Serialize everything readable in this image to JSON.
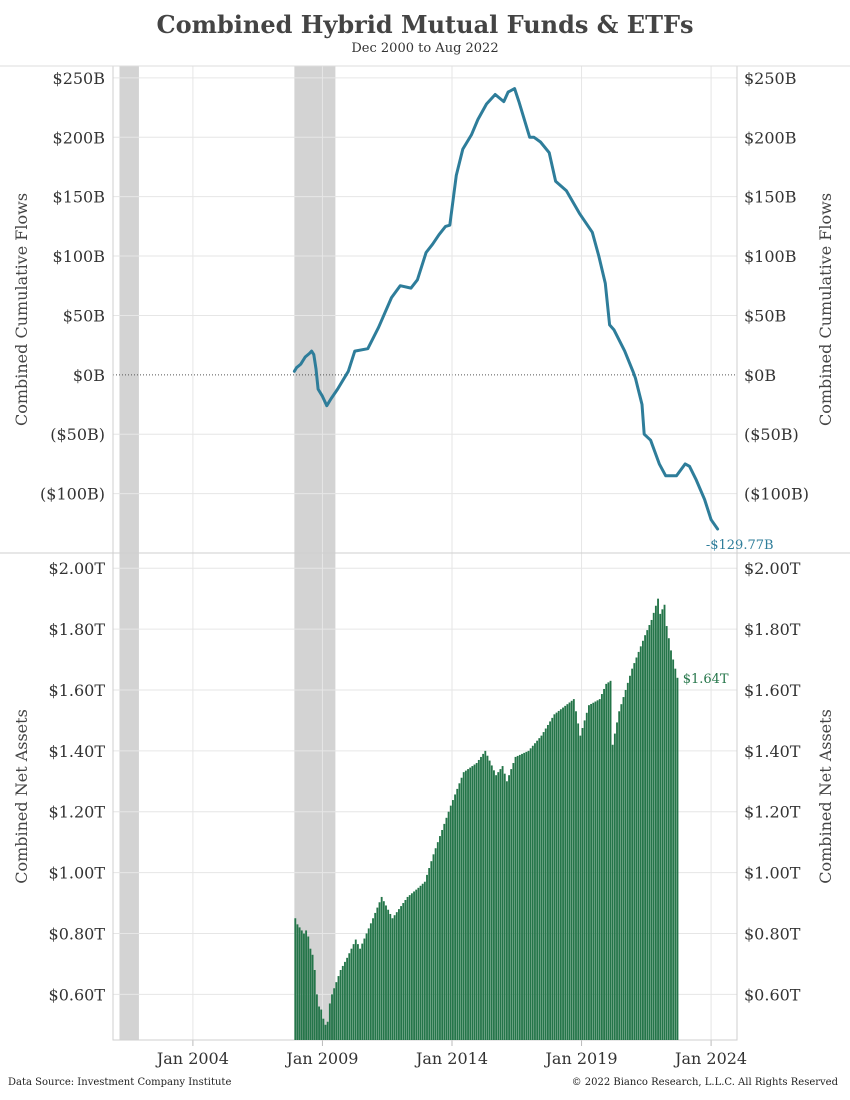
{
  "header": {
    "title": "Combined Hybrid Mutual Funds & ETFs",
    "subtitle": "Dec 2000 to Aug 2022"
  },
  "footer": {
    "source": "Data Source: Investment Company Institute",
    "copyright": "© 2022 Bianco Research, L.L.C. All Rights Reserved"
  },
  "colors": {
    "flows_line": "#2e7d9a",
    "assets_bar": "#247549",
    "recession_shade": "#d3d3d3",
    "grid": "#e6e6e6"
  },
  "chart_data": [
    {
      "type": "line",
      "title": "Combined Hybrid Mutual Funds & ETFs",
      "ylabel": "Combined Cumulative Flows",
      "ylim": [
        -150,
        260
      ],
      "y_ticks": [
        250,
        200,
        150,
        100,
        50,
        0,
        -50,
        -100
      ],
      "y_tick_labels": [
        "$250B",
        "$200B",
        "$150B",
        "$100B",
        "$50B",
        "$0B",
        "($50B)",
        "($100B)"
      ],
      "zero_line": "dotted",
      "grid": true,
      "last_value_label": "-$129.77B",
      "recession_periods": [
        [
          "2001-03",
          "2001-11"
        ],
        [
          "2007-12",
          "2009-06"
        ]
      ],
      "series": [
        {
          "unit": "billions USD",
          "points": [
            [
              "2007-12",
              3
            ],
            [
              "2008-01",
              6
            ],
            [
              "2008-03",
              9
            ],
            [
              "2008-05",
              15
            ],
            [
              "2008-07",
              18
            ],
            [
              "2008-08",
              20
            ],
            [
              "2008-09",
              17
            ],
            [
              "2008-10",
              5
            ],
            [
              "2008-11",
              -12
            ],
            [
              "2009-01",
              -18
            ],
            [
              "2009-02",
              -22
            ],
            [
              "2009-03",
              -26
            ],
            [
              "2009-05",
              -20
            ],
            [
              "2009-08",
              -12
            ],
            [
              "2010-01",
              3
            ],
            [
              "2010-04",
              20
            ],
            [
              "2010-10",
              22
            ],
            [
              "2011-03",
              40
            ],
            [
              "2011-09",
              65
            ],
            [
              "2012-01",
              75
            ],
            [
              "2012-06",
              73
            ],
            [
              "2012-09",
              80
            ],
            [
              "2013-01",
              103
            ],
            [
              "2013-04",
              110
            ],
            [
              "2013-07",
              118
            ],
            [
              "2013-10",
              125
            ],
            [
              "2013-12",
              126
            ],
            [
              "2014-03",
              168
            ],
            [
              "2014-06",
              190
            ],
            [
              "2014-10",
              202
            ],
            [
              "2015-01",
              215
            ],
            [
              "2015-05",
              228
            ],
            [
              "2015-09",
              236
            ],
            [
              "2016-01",
              230
            ],
            [
              "2016-03",
              238
            ],
            [
              "2016-06",
              241
            ],
            [
              "2016-08",
              230
            ],
            [
              "2017-01",
              200
            ],
            [
              "2017-03",
              200
            ],
            [
              "2017-06",
              196
            ],
            [
              "2017-10",
              187
            ],
            [
              "2018-01",
              163
            ],
            [
              "2018-06",
              155
            ],
            [
              "2018-12",
              136
            ],
            [
              "2019-06",
              120
            ],
            [
              "2019-09",
              100
            ],
            [
              "2019-12",
              77
            ],
            [
              "2020-02",
              42
            ],
            [
              "2020-04",
              38
            ],
            [
              "2020-09",
              20
            ],
            [
              "2021-01",
              2
            ],
            [
              "2021-02",
              -3
            ],
            [
              "2021-05",
              -25
            ],
            [
              "2021-06",
              -50
            ],
            [
              "2021-09",
              -55
            ],
            [
              "2022-01",
              -75
            ],
            [
              "2022-04",
              -85
            ],
            [
              "2022-09",
              -85
            ],
            [
              "2023-01",
              -75
            ],
            [
              "2023-03",
              -77
            ],
            [
              "2023-06",
              -88
            ],
            [
              "2023-10",
              -105
            ],
            [
              "2024-01",
              -122
            ],
            [
              "2024-04",
              -129.77
            ]
          ]
        }
      ]
    },
    {
      "type": "bar",
      "ylabel": "Combined Net Assets",
      "ylim": [
        0.45,
        2.05
      ],
      "y_ticks": [
        2.0,
        1.8,
        1.6,
        1.4,
        1.2,
        1.0,
        0.8,
        0.6
      ],
      "y_tick_labels": [
        "$2.00T",
        "$1.80T",
        "$1.60T",
        "$1.40T",
        "$1.20T",
        "$1.00T",
        "$0.80T",
        "$0.60T"
      ],
      "x_ticks": [
        "2004-01",
        "2009-01",
        "2014-01",
        "2019-01",
        "2024-01"
      ],
      "x_tick_labels": [
        "Jan 2004",
        "Jan 2009",
        "Jan 2014",
        "Jan 2019",
        "Jan 2024"
      ],
      "grid": true,
      "last_value_label": "$1.64T",
      "series": [
        {
          "unit": "trillions USD",
          "points": [
            [
              "2007-12",
              0.85
            ],
            [
              "2008-01",
              0.83
            ],
            [
              "2008-02",
              0.82
            ],
            [
              "2008-03",
              0.81
            ],
            [
              "2008-04",
              0.8
            ],
            [
              "2008-05",
              0.81
            ],
            [
              "2008-06",
              0.79
            ],
            [
              "2008-07",
              0.75
            ],
            [
              "2008-08",
              0.73
            ],
            [
              "2008-09",
              0.68
            ],
            [
              "2008-10",
              0.6
            ],
            [
              "2008-11",
              0.56
            ],
            [
              "2008-12",
              0.55
            ],
            [
              "2009-01",
              0.52
            ],
            [
              "2009-02",
              0.5
            ],
            [
              "2009-03",
              0.51
            ],
            [
              "2009-04",
              0.57
            ],
            [
              "2009-05",
              0.6
            ],
            [
              "2009-06",
              0.62
            ],
            [
              "2009-07",
              0.64
            ],
            [
              "2009-09",
              0.68
            ],
            [
              "2009-12",
              0.72
            ],
            [
              "2010-04",
              0.78
            ],
            [
              "2010-06",
              0.75
            ],
            [
              "2010-09",
              0.8
            ],
            [
              "2010-12",
              0.85
            ],
            [
              "2011-04",
              0.92
            ],
            [
              "2011-09",
              0.85
            ],
            [
              "2011-12",
              0.88
            ],
            [
              "2012-04",
              0.92
            ],
            [
              "2012-09",
              0.95
            ],
            [
              "2012-12",
              0.97
            ],
            [
              "2013-04",
              1.06
            ],
            [
              "2013-09",
              1.16
            ],
            [
              "2013-12",
              1.22
            ],
            [
              "2014-06",
              1.33
            ],
            [
              "2014-12",
              1.36
            ],
            [
              "2015-04",
              1.4
            ],
            [
              "2015-09",
              1.32
            ],
            [
              "2015-12",
              1.35
            ],
            [
              "2016-02",
              1.3
            ],
            [
              "2016-06",
              1.38
            ],
            [
              "2016-12",
              1.4
            ],
            [
              "2017-06",
              1.45
            ],
            [
              "2017-12",
              1.52
            ],
            [
              "2018-09",
              1.57
            ],
            [
              "2018-12",
              1.45
            ],
            [
              "2019-04",
              1.55
            ],
            [
              "2019-09",
              1.57
            ],
            [
              "2019-12",
              1.62
            ],
            [
              "2020-02",
              1.63
            ],
            [
              "2020-03",
              1.42
            ],
            [
              "2020-06",
              1.53
            ],
            [
              "2020-12",
              1.67
            ],
            [
              "2021-06",
              1.78
            ],
            [
              "2021-09",
              1.83
            ],
            [
              "2021-12",
              1.9
            ],
            [
              "2022-01",
              1.85
            ],
            [
              "2022-03",
              1.88
            ],
            [
              "2022-04",
              1.81
            ],
            [
              "2022-06",
              1.73
            ],
            [
              "2022-09",
              1.64
            ]
          ]
        }
      ]
    }
  ]
}
